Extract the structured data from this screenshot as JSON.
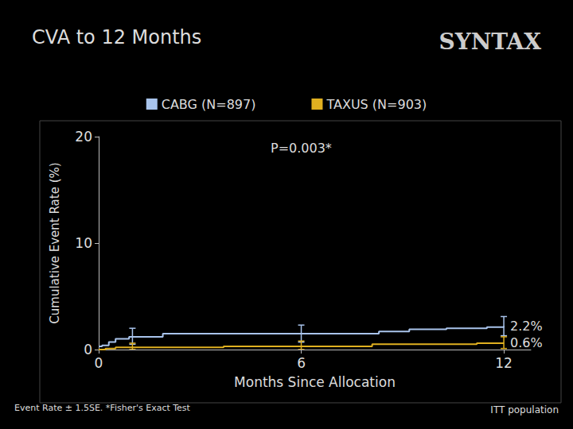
{
  "chart_data": {
    "type": "line",
    "title": "CVA to 12 Months",
    "logo": "SYNTAX",
    "annotation": "P=0.003*",
    "footnote_left": "Event Rate ± 1.5SE. *Fisher's Exact Test",
    "footnote_right": "ITT population",
    "x_label": "Months Since Allocation",
    "y_label": "Cumulative Event Rate (%)",
    "line_style": "step",
    "legend": "top",
    "xlim": [
      0,
      12.8
    ],
    "xticks": [
      0,
      6,
      12
    ],
    "ylim": [
      0,
      20
    ],
    "yticks": [
      0,
      10,
      20
    ],
    "series": [
      {
        "name": "CABG (N=897)",
        "color": "#a9c4ec",
        "x": [
          0,
          0.1,
          0.3,
          0.5,
          0.9,
          1.9,
          8.3,
          9.2,
          10.3,
          11.5,
          12
        ],
        "values": [
          0.3,
          0.4,
          0.7,
          1.0,
          1.2,
          1.5,
          1.7,
          1.9,
          2.0,
          2.1,
          2.2
        ],
        "end_label": "2.2%",
        "error_bars": {
          "x": [
            1,
            6,
            12
          ],
          "low": [
            0.5,
            0.7,
            1.3
          ],
          "high": [
            2.0,
            2.3,
            3.1
          ]
        }
      },
      {
        "name": "TAXUS (N=903)",
        "color": "#e0b020",
        "x": [
          0,
          0.2,
          0.5,
          3.7,
          8.1,
          11.2,
          12
        ],
        "values": [
          0.0,
          0.1,
          0.2,
          0.3,
          0.5,
          0.6,
          0.6
        ],
        "end_label": "0.6%",
        "error_bars": {
          "x": [
            1,
            6,
            12
          ],
          "low": [
            0.0,
            0.0,
            0.1
          ],
          "high": [
            0.6,
            0.8,
            1.2
          ]
        }
      }
    ]
  }
}
